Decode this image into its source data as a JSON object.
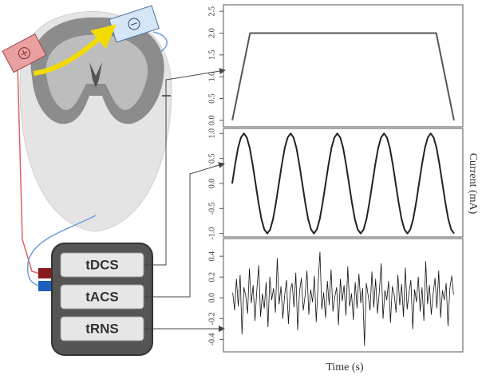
{
  "diagram": {
    "buttons": [
      "tDCS",
      "tACS",
      "tRNS"
    ],
    "y_label": "Current (mA)",
    "x_label": "Time (s)"
  },
  "chart_data": [
    {
      "type": "line",
      "color": "#555555",
      "x": [
        0,
        8,
        92,
        100
      ],
      "values": [
        0,
        2,
        2,
        0
      ],
      "xlim": [
        -4,
        104
      ],
      "ylim": [
        -0.15,
        2.65
      ],
      "yticks": [
        {
          "value": 0,
          "label": "0.0"
        },
        0.5,
        {
          "value": 1,
          "label": "1.0"
        },
        1.5,
        {
          "value": 2,
          "label": "2.0"
        },
        2.5
      ]
    },
    {
      "type": "line",
      "color": "#222222",
      "x": [
        0,
        1,
        2,
        3,
        4,
        5,
        6,
        7,
        8,
        9,
        10,
        11,
        12,
        13,
        14,
        15,
        16,
        17,
        18,
        19,
        20,
        21,
        22,
        23,
        24,
        25,
        26,
        27,
        28,
        29,
        30,
        31,
        32,
        33,
        34,
        35,
        36,
        37,
        38,
        39,
        40,
        41,
        42,
        43,
        44,
        45,
        46,
        47,
        48,
        49,
        50,
        51,
        52,
        53,
        54,
        55,
        56,
        57,
        58,
        59,
        60,
        61,
        62,
        63,
        64,
        65,
        66,
        67,
        68,
        69,
        70,
        71,
        72,
        73,
        74,
        75,
        76
      ],
      "values": [
        0,
        0.38,
        0.71,
        0.92,
        1,
        0.92,
        0.71,
        0.38,
        0,
        -0.38,
        -0.71,
        -0.92,
        -1,
        -0.92,
        -0.71,
        -0.38,
        0,
        0.38,
        0.71,
        0.92,
        1,
        0.92,
        0.71,
        0.38,
        0,
        -0.38,
        -0.71,
        -0.92,
        -1,
        -0.92,
        -0.71,
        -0.38,
        0,
        0.38,
        0.71,
        0.92,
        1,
        0.92,
        0.71,
        0.38,
        0,
        -0.38,
        -0.71,
        -0.92,
        -1,
        -0.92,
        -0.71,
        -0.38,
        0,
        0.38,
        0.71,
        0.92,
        1,
        0.92,
        0.71,
        0.38,
        0,
        -0.38,
        -0.71,
        -0.92,
        -1,
        -0.92,
        -0.71,
        -0.38,
        0,
        0.38,
        0.71,
        0.92,
        1,
        0.92,
        0.71,
        0.38,
        0,
        -0.38,
        -0.71,
        -0.92,
        -1
      ],
      "xlim": [
        -3,
        79
      ],
      "ylim": [
        -1.07,
        1.1
      ],
      "yticks": [
        {
          "value": -1,
          "label": "-1.0"
        },
        -0.5,
        {
          "value": 0,
          "label": "0.0"
        },
        0.5,
        {
          "value": 1,
          "label": "1.0"
        }
      ]
    },
    {
      "type": "line",
      "color": "#111111",
      "x": [
        0,
        1,
        2,
        3,
        4,
        5,
        6,
        7,
        8,
        9,
        10,
        11,
        12,
        13,
        14,
        15,
        16,
        17,
        18,
        19,
        20,
        21,
        22,
        23,
        24,
        25,
        26,
        27,
        28,
        29,
        30,
        31,
        32,
        33,
        34,
        35,
        36,
        37,
        38,
        39,
        40,
        41,
        42,
        43,
        44,
        45,
        46,
        47,
        48,
        49,
        50,
        51,
        52,
        53,
        54,
        55,
        56,
        57,
        58,
        59,
        60,
        61,
        62,
        63,
        64,
        65,
        66,
        67,
        68,
        69,
        70,
        71,
        72,
        73,
        74,
        75,
        76,
        77,
        78,
        79,
        80,
        81,
        82,
        83,
        84,
        85,
        86,
        87,
        88,
        89,
        90,
        91,
        92,
        93,
        94,
        95,
        96,
        97,
        98,
        99,
        100,
        101,
        102,
        103,
        104,
        105,
        106,
        107,
        108,
        109,
        110,
        111,
        112,
        113,
        114,
        115,
        116,
        117,
        118,
        119
      ],
      "values": [
        0.05,
        -0.12,
        0.18,
        -0.08,
        0.22,
        -0.35,
        0.1,
        0.02,
        -0.15,
        0.28,
        -0.05,
        0.12,
        -0.22,
        0.08,
        0.31,
        -0.18,
        0.04,
        -0.1,
        0.15,
        -0.28,
        0.2,
        -0.02,
        0.09,
        -0.14,
        0.38,
        -0.06,
        0.11,
        -0.2,
        0.03,
        0.17,
        -0.25,
        0.07,
        0.14,
        -0.09,
        0.24,
        -0.31,
        0.06,
        0.19,
        -0.12,
        0.02,
        0.26,
        -0.16,
        0.08,
        -0.04,
        0.21,
        -0.23,
        0.13,
        0.44,
        -0.11,
        0.05,
        -0.19,
        0.16,
        -0.07,
        0.27,
        -0.13,
        0.01,
        0.1,
        -0.26,
        0.18,
        -0.03,
        0.12,
        -0.17,
        0.3,
        -0.08,
        0.04,
        -0.21,
        0.15,
        -0.1,
        0.23,
        -0.05,
        0.09,
        -0.46,
        0.14,
        0.02,
        -0.12,
        0.25,
        -0.09,
        0.18,
        -0.15,
        0.06,
        0.33,
        -0.2,
        0.07,
        -0.02,
        0.16,
        -0.24,
        0.11,
        0.03,
        -0.14,
        0.22,
        -0.07,
        0.13,
        -0.18,
        0.29,
        -0.11,
        0.05,
        0.17,
        -0.3,
        0.08,
        -0.04,
        0.2,
        -0.13,
        0.1,
        -0.22,
        0.35,
        -0.06,
        0.12,
        -0.16,
        0.04,
        0.19,
        -0.1,
        0.26,
        -0.19,
        0.07,
        -0.02,
        0.14,
        -0.27,
        0.09,
        0.21,
        0.03
      ],
      "xlim": [
        -5,
        124
      ],
      "ylim": [
        -0.52,
        0.57
      ],
      "yticks": [
        -0.4,
        -0.2,
        {
          "value": 0,
          "label": "0.0"
        },
        0.2,
        0.4
      ]
    }
  ]
}
